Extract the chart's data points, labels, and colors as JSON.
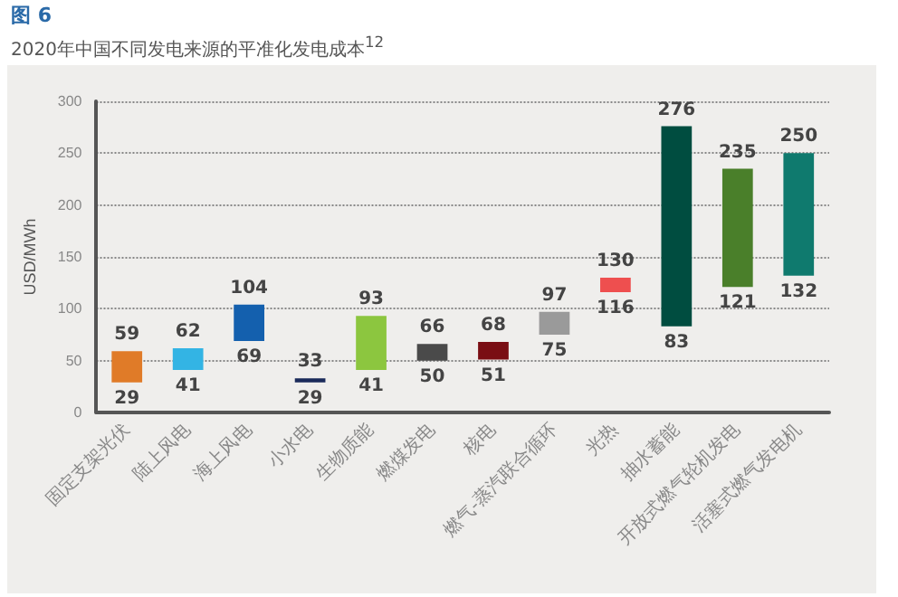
{
  "chart_data": {
    "type": "bar",
    "title": "图 6",
    "subtitle": "2020年中国不同发电来源的平准化发电成本$^{12}$",
    "ylabel": "USD/MWh",
    "categories": [
      "固定支架光伏",
      "陆上风电",
      "海上风电",
      "小水电",
      "生物质能",
      "燃煤发电",
      "核电",
      "燃气-蒸汽联合循环",
      "光热",
      "抽水蓄能",
      "开放式燃气轮机发电",
      "活塞式燃气发电机"
    ],
    "base": [
      29,
      41,
      69,
      29,
      41,
      50,
      51,
      75,
      116,
      83,
      121,
      132
    ],
    "values": [
      30,
      21,
      35,
      4,
      52,
      16,
      17,
      22,
      14,
      193,
      114,
      118
    ],
    "colors": [
      "#e07b28",
      "#33b4e4",
      "#1460ae",
      "#1a2a5a",
      "#8cc63f",
      "#4a4a4a",
      "#7a0e14",
      "#9a9a9a",
      "#ee4f4f",
      "#004d40",
      "#4a7f2a",
      "#0f7a6e"
    ],
    "ylim": [
      0,
      300
    ],
    "yticks": [
      0,
      50,
      100,
      150,
      200,
      250,
      300
    ],
    "grid": "y",
    "annotations": [
      {
        "text": "59",
        "x": "固定支架光伏",
        "y": 59
      },
      {
        "text": "29",
        "x": "固定支架光伏",
        "y": 29
      },
      {
        "text": "62",
        "x": "陆上风电",
        "y": 62
      },
      {
        "text": "41",
        "x": "陆上风电",
        "y": 41
      },
      {
        "text": "104",
        "x": "海上风电",
        "y": 104
      },
      {
        "text": "69",
        "x": "海上风电",
        "y": 69
      },
      {
        "text": "33",
        "x": "小水电",
        "y": 33
      },
      {
        "text": "29",
        "x": "小水电",
        "y": 29
      },
      {
        "text": "93",
        "x": "生物质能",
        "y": 93
      },
      {
        "text": "41",
        "x": "生物质能",
        "y": 41
      },
      {
        "text": "66",
        "x": "燃煤发电",
        "y": 66
      },
      {
        "text": "50",
        "x": "燃煤发电",
        "y": 50
      },
      {
        "text": "68",
        "x": "核电",
        "y": 68
      },
      {
        "text": "51",
        "x": "核电",
        "y": 51
      },
      {
        "text": "97",
        "x": "燃气-蒸汽联合循环",
        "y": 97
      },
      {
        "text": "75",
        "x": "燃气-蒸汽联合循环",
        "y": 75
      },
      {
        "text": "130",
        "x": "光热",
        "y": 130
      },
      {
        "text": "116",
        "x": "光热",
        "y": 116
      },
      {
        "text": "276",
        "x": "抽水蓄能",
        "y": 276
      },
      {
        "text": "83",
        "x": "抽水蓄能",
        "y": 83
      },
      {
        "text": "235",
        "x": "开放式燃气轮机发电",
        "y": 235
      },
      {
        "text": "121",
        "x": "开放式燃气轮机发电",
        "y": 121
      },
      {
        "text": "250",
        "x": "活塞式燃气发电机",
        "y": 250
      },
      {
        "text": "132",
        "x": "活塞式燃气发电机",
        "y": 132
      }
    ]
  }
}
